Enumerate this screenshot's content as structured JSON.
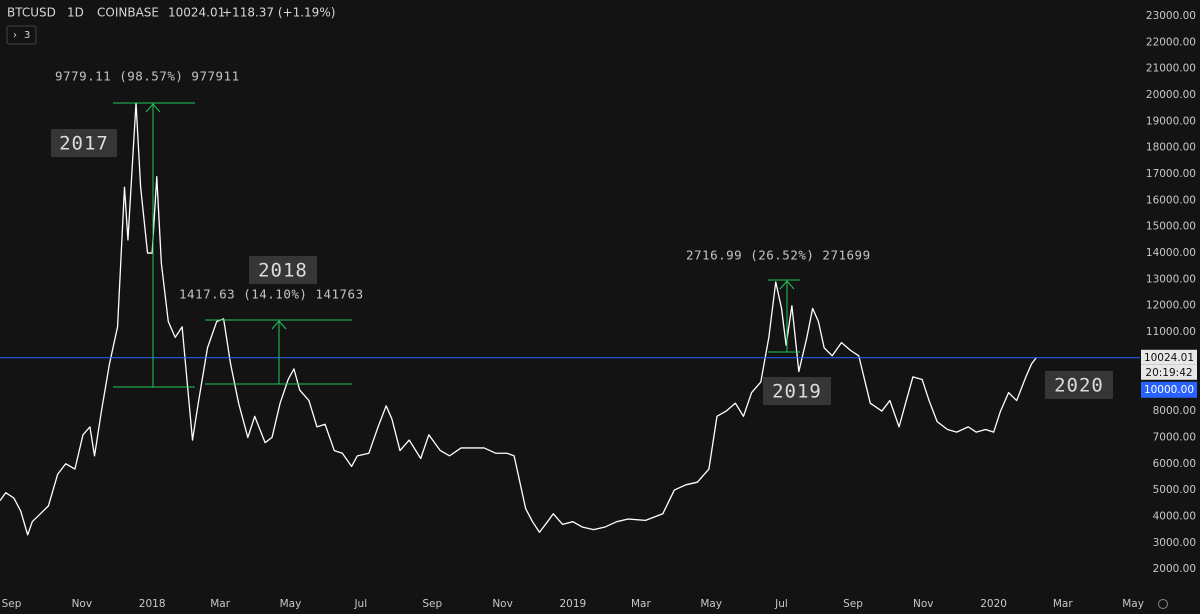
{
  "chart_data": {
    "type": "line",
    "interval": "1D",
    "exchange": "COINBASE",
    "change": "+118.37 (+1.19%)",
    "indicator_count": 3,
    "countdown": "20:19:42",
    "level_label": "10000.00",
    "price_line": 10024.01,
    "annotations": [
      "9779.11 (98.57%) 977911",
      "1417.63 (14.10%) 141763",
      "2716.99 (26.52%) 271699",
      "2017",
      "2018",
      "2019",
      "2020"
    ],
    "x": [
      -10,
      -5,
      2,
      8,
      14,
      18,
      25,
      32,
      40,
      47,
      55,
      62,
      68,
      72,
      78,
      85,
      92,
      98,
      101,
      105,
      108,
      112,
      118,
      122,
      126,
      130,
      136,
      142,
      148,
      153,
      157,
      162,
      170,
      178,
      184,
      190,
      197,
      205,
      211,
      220,
      226,
      233,
      240,
      245,
      250,
      258,
      265,
      272,
      280,
      287,
      295,
      300,
      310,
      318,
      325,
      330,
      337,
      345,
      355,
      362,
      372,
      380,
      390,
      400,
      410,
      420,
      430,
      436,
      440,
      446,
      452,
      458,
      465,
      470,
      478,
      487,
      495,
      505,
      515,
      525,
      535,
      550,
      565,
      575,
      585,
      595,
      605,
      612,
      620,
      628,
      635,
      642,
      650,
      657,
      663,
      668,
      672,
      677,
      683,
      690,
      695,
      700,
      705,
      712,
      720,
      728,
      735,
      745,
      755,
      762,
      770,
      775,
      782,
      790,
      796,
      803,
      812,
      820,
      830,
      837,
      845,
      852,
      858,
      865,
      872,
      880,
      885,
      889
    ],
    "series": [
      {
        "name": "BTCUSD",
        "color": "#ffffff",
        "values": [
          4600,
          4900,
          4700,
          4200,
          3300,
          3800,
          4100,
          4400,
          5600,
          6000,
          5800,
          7100,
          7400,
          6300,
          8000,
          9800,
          11200,
          16500,
          14500,
          17500,
          19700,
          16500,
          14000,
          14000,
          16900,
          13600,
          11400,
          10800,
          11200,
          8800,
          6900,
          8300,
          10400,
          11400,
          11500,
          9800,
          8300,
          7000,
          7800,
          6800,
          7000,
          8300,
          9200,
          9600,
          8800,
          8400,
          7400,
          7500,
          6500,
          6400,
          5900,
          6300,
          6400,
          7400,
          8200,
          7700,
          6500,
          6900,
          6200,
          7100,
          6500,
          6300,
          6600,
          6600,
          6600,
          6400,
          6400,
          6300,
          5500,
          4300,
          3800,
          3400,
          3800,
          4100,
          3700,
          3800,
          3600,
          3500,
          3600,
          3800,
          3900,
          3850,
          4100,
          5000,
          5200,
          5300,
          5800,
          7800,
          8000,
          8300,
          7800,
          8700,
          9100,
          10800,
          12900,
          11900,
          10500,
          12000,
          9500,
          10800,
          11900,
          11400,
          10400,
          10100,
          10600,
          10300,
          10100,
          8300,
          8000,
          8400,
          7400,
          8200,
          9300,
          9200,
          8400,
          7600,
          7300,
          7200,
          7400,
          7200,
          7300,
          7200,
          8000,
          8700,
          8400,
          9300,
          9800,
          10024.01
        ]
      }
    ],
    "xlim": [
      -10,
      979
    ],
    "xticks": [
      {
        "value": 0,
        "label": "Sep"
      },
      {
        "value": 61,
        "label": "Nov"
      },
      {
        "value": 122,
        "label": "2018"
      },
      {
        "value": 181,
        "label": "Mar"
      },
      {
        "value": 242,
        "label": "May"
      },
      {
        "value": 303,
        "label": "Jul"
      },
      {
        "value": 365,
        "label": "Sep"
      },
      {
        "value": 426,
        "label": "Nov"
      },
      {
        "value": 487,
        "label": "2019"
      },
      {
        "value": 546,
        "label": "Mar"
      },
      {
        "value": 607,
        "label": "May"
      },
      {
        "value": 668,
        "label": "Jul"
      },
      {
        "value": 730,
        "label": "Sep"
      },
      {
        "value": 791,
        "label": "Nov"
      },
      {
        "value": 852,
        "label": "2020"
      },
      {
        "value": 912,
        "label": "Mar"
      },
      {
        "value": 973,
        "label": "May"
      }
    ],
    "ylim": [
      1130,
      23610
    ],
    "yticks": [
      {
        "value": 2000,
        "label": "2000.00"
      },
      {
        "value": 3000,
        "label": "3000.00"
      },
      {
        "value": 4000,
        "label": "4000.00"
      },
      {
        "value": 5000,
        "label": "5000.00"
      },
      {
        "value": 6000,
        "label": "6000.00"
      },
      {
        "value": 7000,
        "label": "7000.00"
      },
      {
        "value": 8000,
        "label": "8000.00"
      },
      {
        "value": 11000,
        "label": "11000.00"
      },
      {
        "value": 12000,
        "label": "12000.00"
      },
      {
        "value": 13000,
        "label": "13000.00"
      },
      {
        "value": 14000,
        "label": "14000.00"
      },
      {
        "value": 15000,
        "label": "15000.00"
      },
      {
        "value": 16000,
        "label": "16000.00"
      },
      {
        "value": 17000,
        "label": "17000.00"
      },
      {
        "value": 18000,
        "label": "18000.00"
      },
      {
        "value": 19000,
        "label": "19000.00"
      },
      {
        "value": 20000,
        "label": "20000.00"
      },
      {
        "value": 21000,
        "label": "21000.00"
      },
      {
        "value": 22000,
        "label": "22000.00"
      },
      {
        "value": 23000,
        "label": "23000.00"
      }
    ],
    "grid": false
  }
}
